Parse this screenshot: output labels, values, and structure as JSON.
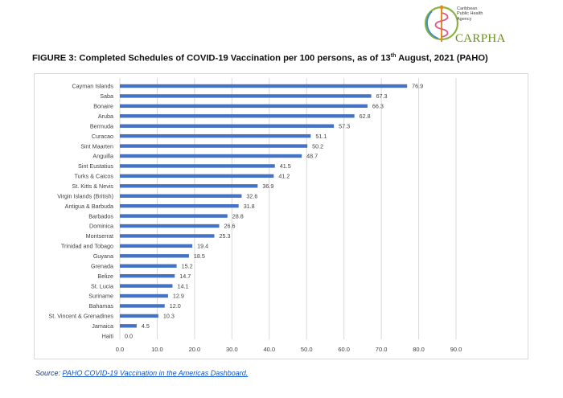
{
  "logo": {
    "org_lines": [
      "Caribbean",
      "Public Health",
      "Agency"
    ],
    "wordmark": "CARPHA"
  },
  "figure": {
    "title_prefix": "FIGURE 3: Completed Schedules of COVID-19 Vaccination per 100 persons, as of 13",
    "title_sup": "th",
    "title_suffix": " August, 2021 (PAHO)"
  },
  "source": {
    "label": "Source:",
    "link_text": "PAHO COVID-19 Vaccination in the Americas Dashboard."
  },
  "colors": {
    "bar": "#4472c4",
    "grid": "#d9d9d9",
    "text": "#404040"
  },
  "chart_data": {
    "type": "bar",
    "orientation": "horizontal",
    "categories": [
      "Cayman Islands",
      "Saba",
      "Bonaire",
      "Aruba",
      "Bermuda",
      "Curacao",
      "Sint Maarten",
      "Anguilla",
      "Sint Eustatius",
      "Turks & Caicos",
      "St. Kitts & Nevis",
      "Virgin Islands (British)",
      "Antigua & Barbuda",
      "Barbados",
      "Dominica",
      "Montserrat",
      "Trinidad and Tobago",
      "Guyana",
      "Grenada",
      "Belize",
      "St. Lucia",
      "Suriname",
      "Bahamas",
      "St. Vincent & Grenadines",
      "Jamaica",
      "Haiti"
    ],
    "values": [
      76.9,
      67.3,
      66.3,
      62.8,
      57.3,
      51.1,
      50.2,
      48.7,
      41.5,
      41.2,
      36.9,
      32.6,
      31.8,
      28.8,
      26.6,
      25.3,
      19.4,
      18.5,
      15.2,
      14.7,
      14.1,
      12.9,
      12.0,
      10.3,
      4.5,
      0.0
    ],
    "xlim": [
      0,
      90
    ],
    "xticks": [
      "0.0",
      "10.0",
      "20.0",
      "30.0",
      "40.0",
      "50.0",
      "60.0",
      "70.0",
      "80.0",
      "90.0"
    ],
    "grid": true,
    "legend": false
  }
}
